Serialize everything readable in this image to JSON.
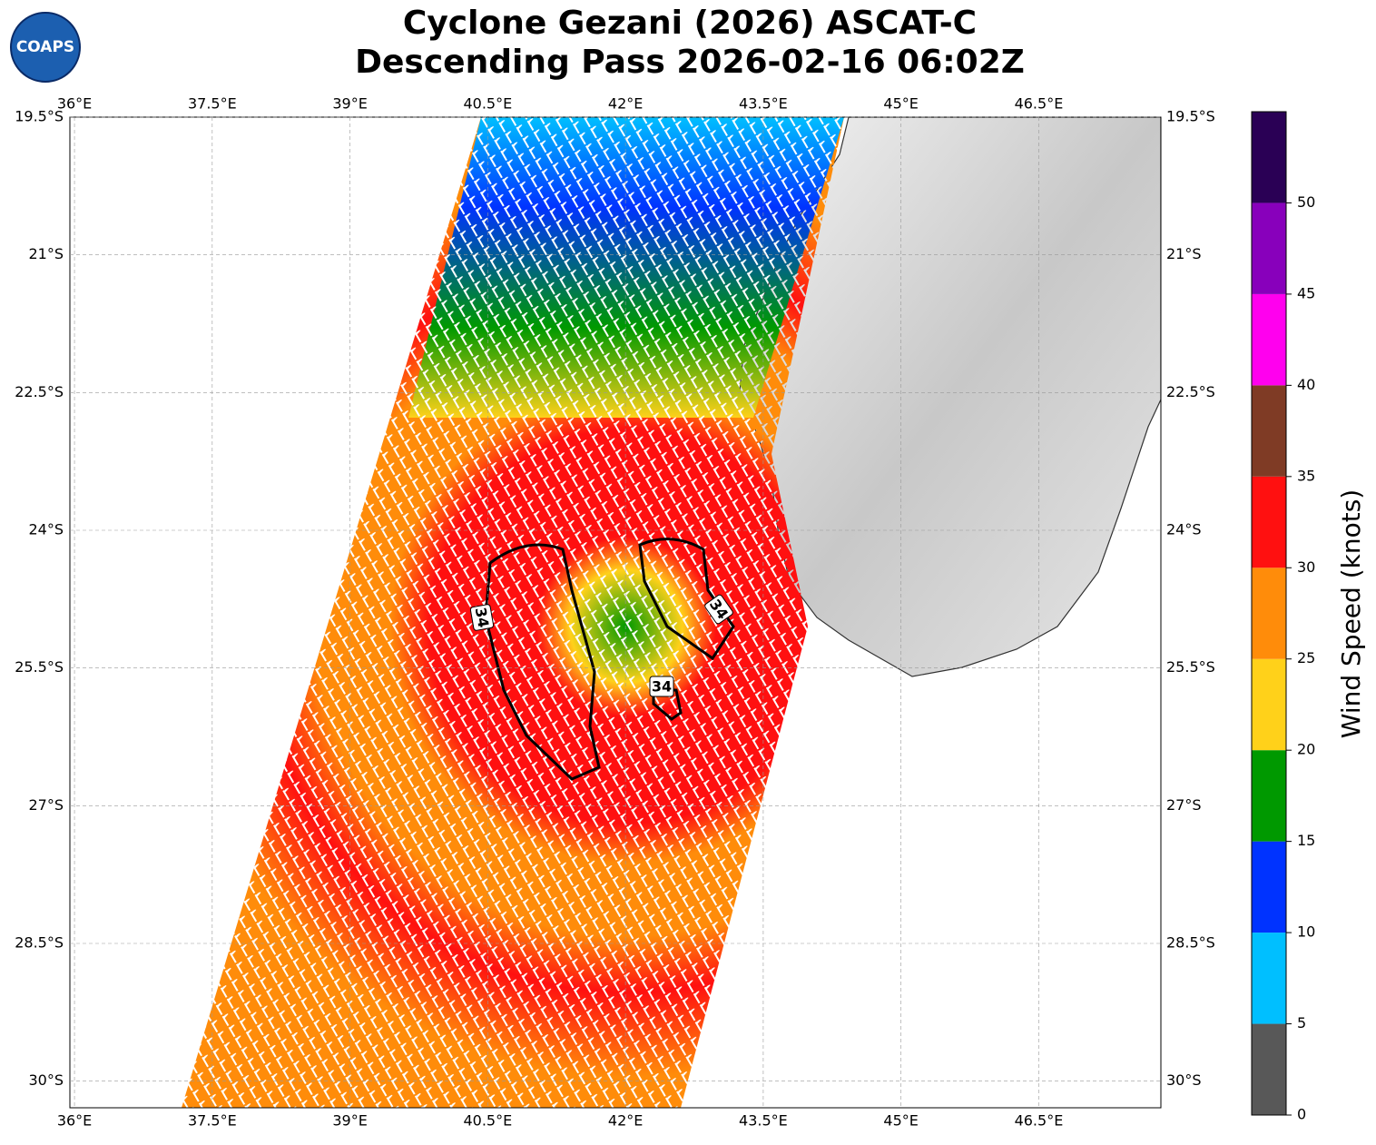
{
  "header": {
    "title": "Cyclone Gezani (2026) ASCAT-C",
    "subtitle": "Descending Pass 2026-02-16 06:02Z",
    "logo": "COAPS"
  },
  "chart_data": {
    "type": "map",
    "xlim": [
      35.95,
      47.83
    ],
    "ylim": [
      -19.5,
      -30.29
    ],
    "xticks": [
      {
        "value": 36,
        "label": "36°E"
      },
      {
        "value": 37.5,
        "label": "37.5°E"
      },
      {
        "value": 39,
        "label": "39°E"
      },
      {
        "value": 40.5,
        "label": "40.5°E"
      },
      {
        "value": 42,
        "label": "42°E"
      },
      {
        "value": 43.5,
        "label": "43.5°E"
      },
      {
        "value": 45,
        "label": "45°E"
      },
      {
        "value": 46.5,
        "label": "46.5°E"
      }
    ],
    "yticks": [
      {
        "value": -19.5,
        "label": "19.5°S"
      },
      {
        "value": -21,
        "label": "21°S"
      },
      {
        "value": -22.5,
        "label": "22.5°S"
      },
      {
        "value": -24,
        "label": "24°S"
      },
      {
        "value": -25.5,
        "label": "25.5°S"
      },
      {
        "value": -27,
        "label": "27°S"
      },
      {
        "value": -28.5,
        "label": "28.5°S"
      },
      {
        "value": -30,
        "label": "30°S"
      }
    ],
    "grid": true,
    "contour_labels": [
      34,
      34,
      34
    ]
  },
  "colorbar": {
    "label": "Wind Speed (knots)",
    "bins": [
      0,
      5,
      10,
      15,
      20,
      25,
      30,
      35,
      40,
      45,
      50,
      55
    ],
    "colors": [
      "#585858",
      "#00bfff",
      "#0033ff",
      "#009900",
      "#ffd11a",
      "#ff8c0a",
      "#ff1010",
      "#7f3b25",
      "#ff00ee",
      "#8800bb",
      "#2a0055"
    ],
    "ticks": [
      0,
      5,
      10,
      15,
      20,
      25,
      30,
      35,
      40,
      45,
      50
    ]
  }
}
